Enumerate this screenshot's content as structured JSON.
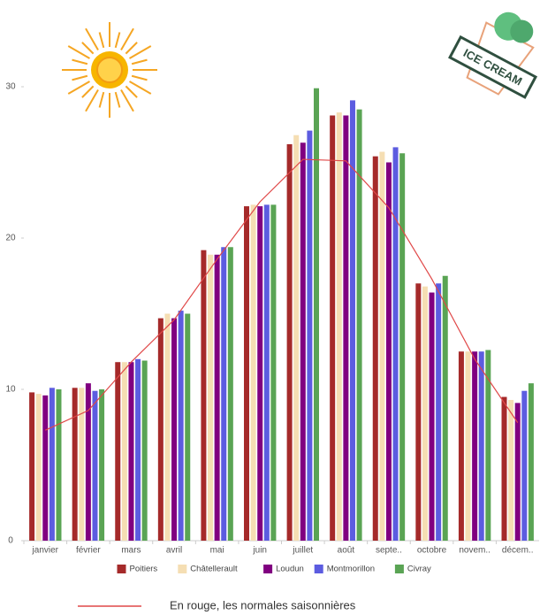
{
  "chart_data": {
    "type": "bar",
    "categories": [
      "janvier",
      "février",
      "mars",
      "avril",
      "mai",
      "juin",
      "juillet",
      "août",
      "septe..",
      "octobre",
      "novem..",
      "décem.."
    ],
    "series": [
      {
        "name": "Poitiers",
        "color": "#a52a2a",
        "values": [
          9.8,
          10.1,
          11.8,
          14.7,
          19.2,
          22.1,
          26.2,
          28.1,
          25.4,
          17.0,
          12.5,
          9.5
        ]
      },
      {
        "name": "Châtellerault",
        "color": "#f5deb3",
        "values": [
          9.7,
          10.1,
          11.8,
          15.0,
          18.9,
          22.2,
          26.8,
          28.3,
          25.7,
          16.8,
          12.5,
          9.3
        ]
      },
      {
        "name": "Loudun",
        "color": "#800080",
        "values": [
          9.6,
          10.4,
          11.8,
          14.7,
          18.9,
          22.1,
          26.3,
          28.1,
          25.0,
          16.4,
          12.5,
          9.1
        ]
      },
      {
        "name": "Montmorillon",
        "color": "#5c5ce0",
        "values": [
          10.1,
          9.9,
          12.0,
          15.2,
          19.4,
          22.2,
          27.1,
          29.1,
          26.0,
          17.0,
          12.5,
          9.9
        ]
      },
      {
        "name": "Civray",
        "color": "#5aa454",
        "values": [
          10.0,
          10.0,
          11.9,
          15.0,
          19.4,
          22.2,
          29.9,
          28.5,
          25.6,
          17.5,
          12.6,
          10.4
        ]
      }
    ],
    "normals": {
      "label": "En rouge, les normales saisonnières",
      "color": "#e04848",
      "values": [
        7.3,
        8.6,
        11.8,
        14.6,
        18.6,
        22.4,
        25.2,
        25.1,
        22.0,
        17.3,
        12.0,
        7.8
      ]
    },
    "ylim": [
      0,
      35
    ],
    "yticks": [
      0,
      10,
      20,
      30
    ],
    "grid": false,
    "legend": "bottom"
  },
  "badge": "ICE CREAM"
}
